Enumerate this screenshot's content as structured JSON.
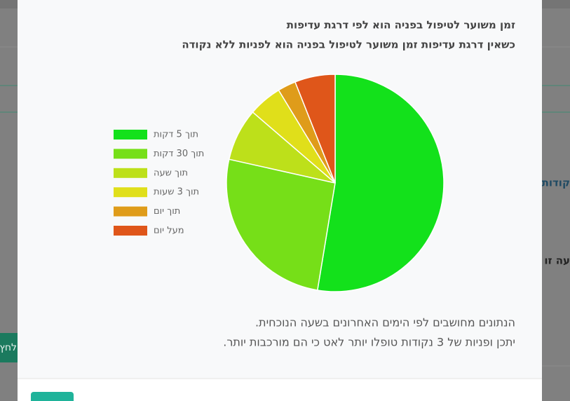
{
  "background": {
    "texts": [
      "קודות",
      "עה זו",
      "לחץ"
    ]
  },
  "chart_data": {
    "type": "pie",
    "title": "זמן משוער לטיפול בפניה הוא לפי דרגת עדיפות",
    "subtitle": "כשאין דרגת עדיפות זמן משוער לטיפול בפניה הוא לפניות ללא נקודה",
    "categories": [
      "תוך 5 דקות",
      "תוך 30 דקות",
      "תוך שעה",
      "תוך 3 שעות",
      "תוך יום",
      "מעל יום"
    ],
    "values": [
      52.6,
      25.9,
      7.8,
      5.0,
      2.7,
      6.0
    ],
    "colors": [
      "#13e11b",
      "#76df18",
      "#bde01a",
      "#e0df1a",
      "#df9c1a",
      "#df561a"
    ],
    "legend": "left",
    "annotations": [
      "הנתונים מחושבים לפי הימים האחרונים בשעה הנוכחית.",
      "יתכן ופניות של 3 נקודות טופלו יותר לאט כי הם מורכבות יותר."
    ]
  }
}
